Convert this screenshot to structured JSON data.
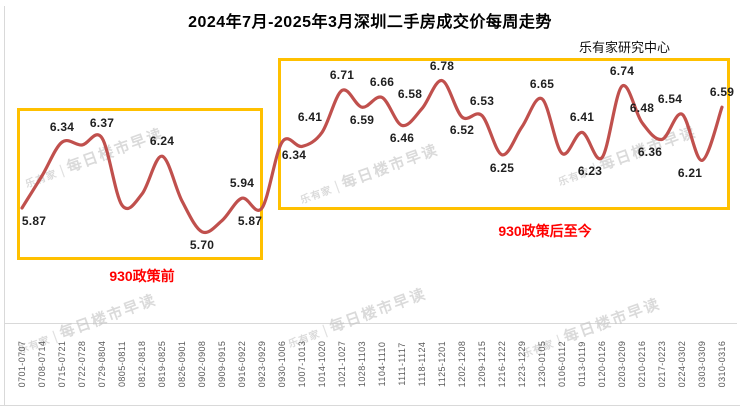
{
  "header": {
    "title": "2024年7月-2025年3月深圳二手房成交价每周走势",
    "source": "乐有家研究中心"
  },
  "annotations": {
    "pre_policy_label": "930政策前",
    "post_policy_label": "930政策后至今"
  },
  "watermark": {
    "brand": "乐有家",
    "separator": "|",
    "text": "每日楼市早读"
  },
  "colors": {
    "line": "#C0504D",
    "region_box": "#FFC000",
    "annotation_text": "#FF0000",
    "data_label": "#1f1f1f",
    "axis_text": "#595959",
    "border": "#d9d9d9"
  },
  "chart_data": {
    "type": "line",
    "title": "2024年7月-2025年3月深圳二手房成交价每周走势",
    "source": "乐有家研究中心",
    "xlabel": "",
    "ylabel": "",
    "ylim": [
      5.6,
      6.95
    ],
    "grid": false,
    "smooth": true,
    "legend": "none",
    "x_tick_rotation": 90,
    "regions": [
      {
        "label": "930政策前",
        "from": "0701-0707",
        "to": "0923-0929"
      },
      {
        "label": "930政策后至今",
        "from": "0930-1006",
        "to": "0310-0316"
      }
    ],
    "points": [
      {
        "week": "0701-0707",
        "value": 5.87,
        "label": "5.87",
        "label_pos": "below-right"
      },
      {
        "week": "0708-0714",
        "value": 6.1,
        "label": null,
        "label_pos": null
      },
      {
        "week": "0715-0721",
        "value": 6.34,
        "label": "6.34",
        "label_pos": "above"
      },
      {
        "week": "0722-0728",
        "value": 6.32,
        "label": null,
        "label_pos": null
      },
      {
        "week": "0729-0804",
        "value": 6.37,
        "label": "6.37",
        "label_pos": "above"
      },
      {
        "week": "0805-0811",
        "value": 5.89,
        "label": null,
        "label_pos": null
      },
      {
        "week": "0812-0818",
        "value": 5.97,
        "label": null,
        "label_pos": null
      },
      {
        "week": "0819-0825",
        "value": 6.24,
        "label": "6.24",
        "label_pos": "above"
      },
      {
        "week": "0826-0901",
        "value": 5.92,
        "label": null,
        "label_pos": null
      },
      {
        "week": "0902-0908",
        "value": 5.7,
        "label": "5.70",
        "label_pos": "below"
      },
      {
        "week": "0909-0915",
        "value": 5.78,
        "label": null,
        "label_pos": null
      },
      {
        "week": "0916-0922",
        "value": 5.94,
        "label": "5.94",
        "label_pos": "above"
      },
      {
        "week": "0923-0929",
        "value": 5.87,
        "label": "5.87",
        "label_pos": "below-left"
      },
      {
        "week": "0930-1006",
        "value": 6.34,
        "label": "6.34",
        "label_pos": "below-right"
      },
      {
        "week": "1007-1013",
        "value": 6.31,
        "label": null,
        "label_pos": null
      },
      {
        "week": "1014-1020",
        "value": 6.41,
        "label": "6.41",
        "label_pos": "above-left"
      },
      {
        "week": "1021-1027",
        "value": 6.71,
        "label": "6.71",
        "label_pos": "above"
      },
      {
        "week": "1028-1103",
        "value": 6.59,
        "label": "6.59",
        "label_pos": "below"
      },
      {
        "week": "1104-1110",
        "value": 6.66,
        "label": "6.66",
        "label_pos": "above"
      },
      {
        "week": "1111-1117",
        "value": 6.46,
        "label": "6.46",
        "label_pos": "below"
      },
      {
        "week": "1118-1124",
        "value": 6.58,
        "label": "6.58",
        "label_pos": "above-left"
      },
      {
        "week": "1125-1201",
        "value": 6.78,
        "label": "6.78",
        "label_pos": "above"
      },
      {
        "week": "1202-1208",
        "value": 6.52,
        "label": "6.52",
        "label_pos": "below"
      },
      {
        "week": "1209-1215",
        "value": 6.53,
        "label": "6.53",
        "label_pos": "above"
      },
      {
        "week": "1216-1222",
        "value": 6.25,
        "label": "6.25",
        "label_pos": "below"
      },
      {
        "week": "1223-1229",
        "value": 6.45,
        "label": null,
        "label_pos": null
      },
      {
        "week": "1230-0105",
        "value": 6.65,
        "label": "6.65",
        "label_pos": "above"
      },
      {
        "week": "0106-0112",
        "value": 6.26,
        "label": null,
        "label_pos": null
      },
      {
        "week": "0113-0119",
        "value": 6.41,
        "label": "6.41",
        "label_pos": "above"
      },
      {
        "week": "0120-0126",
        "value": 6.23,
        "label": "6.23",
        "label_pos": "below-left"
      },
      {
        "week": "0203-0209",
        "value": 6.74,
        "label": "6.74",
        "label_pos": "above"
      },
      {
        "week": "0210-0216",
        "value": 6.48,
        "label": "6.48",
        "label_pos": "above"
      },
      {
        "week": "0217-0223",
        "value": 6.36,
        "label": "6.36",
        "label_pos": "below-left"
      },
      {
        "week": "0224-0302",
        "value": 6.54,
        "label": "6.54",
        "label_pos": "above-left"
      },
      {
        "week": "0303-0309",
        "value": 6.21,
        "label": "6.21",
        "label_pos": "below-left"
      },
      {
        "week": "0310-0316",
        "value": 6.59,
        "label": "6.59",
        "label_pos": "above"
      }
    ]
  }
}
